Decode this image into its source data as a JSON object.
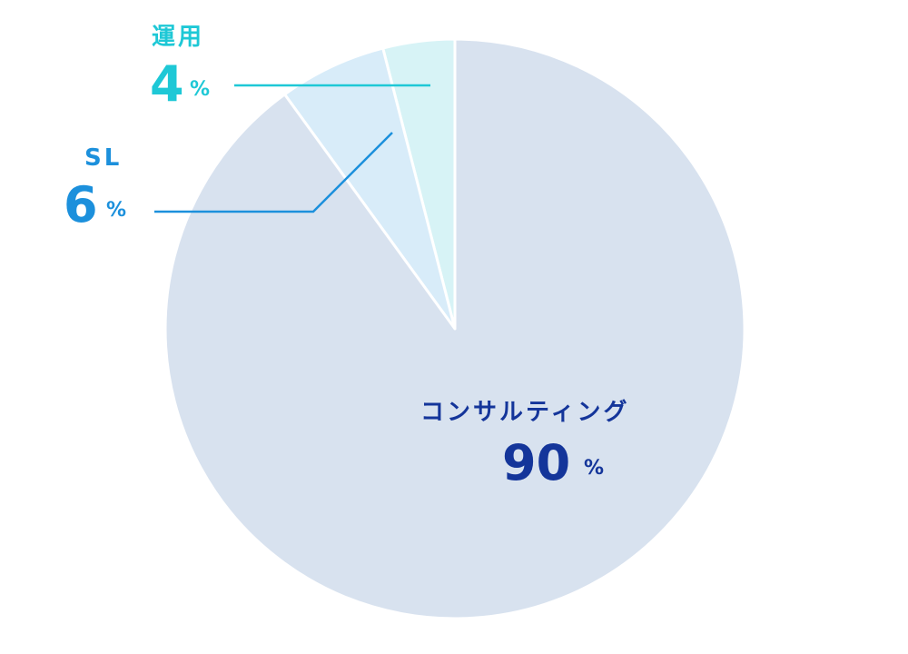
{
  "chart_data": {
    "type": "pie",
    "slices": [
      {
        "label": "運用",
        "value": 4,
        "unit": "%",
        "fill": "#d7f3f6",
        "text_color": "#1ec8d6"
      },
      {
        "label": "SL",
        "value": 6,
        "unit": "%",
        "fill": "#d8ecf9",
        "text_color": "#1c90dc"
      },
      {
        "label": "コンサルティング",
        "value": 90,
        "unit": "%",
        "fill": "#d8e2ef",
        "text_color": "#14359a"
      }
    ],
    "start": "12 o'clock",
    "direction": "counter-clockwise",
    "slice_border": "#ffffff"
  }
}
